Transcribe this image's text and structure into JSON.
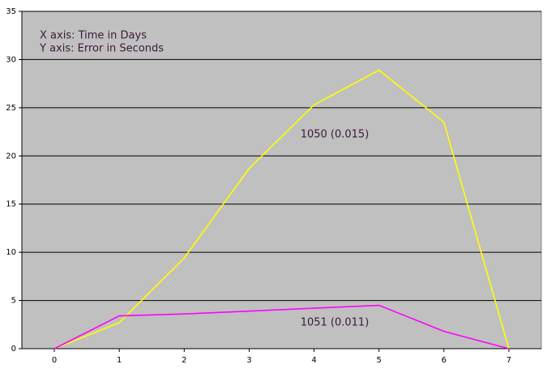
{
  "chart_data": {
    "type": "line",
    "annotations": [
      "X axis: Time in Days",
      "Y axis: Error in Seconds"
    ],
    "x": [
      0,
      1,
      2,
      3,
      4,
      5,
      6,
      7
    ],
    "series": [
      {
        "name": "1050 (0.015)",
        "color": "#ffff00",
        "values": [
          0,
          2.7,
          9.4,
          18.7,
          25.3,
          28.9,
          23.5,
          0
        ]
      },
      {
        "name": "1051 (0.011)",
        "color": "#ff00ff",
        "values": [
          0,
          3.4,
          3.6,
          3.9,
          4.2,
          4.5,
          1.8,
          0
        ]
      }
    ],
    "xlim": [
      -0.5,
      7.5
    ],
    "xticks": [
      0,
      1,
      2,
      3,
      4,
      5,
      6,
      7
    ],
    "ylim": [
      0,
      35
    ],
    "yticks": [
      0,
      5,
      10,
      15,
      20,
      25,
      30,
      35
    ],
    "grid": true,
    "background": "#c0c0c0"
  }
}
